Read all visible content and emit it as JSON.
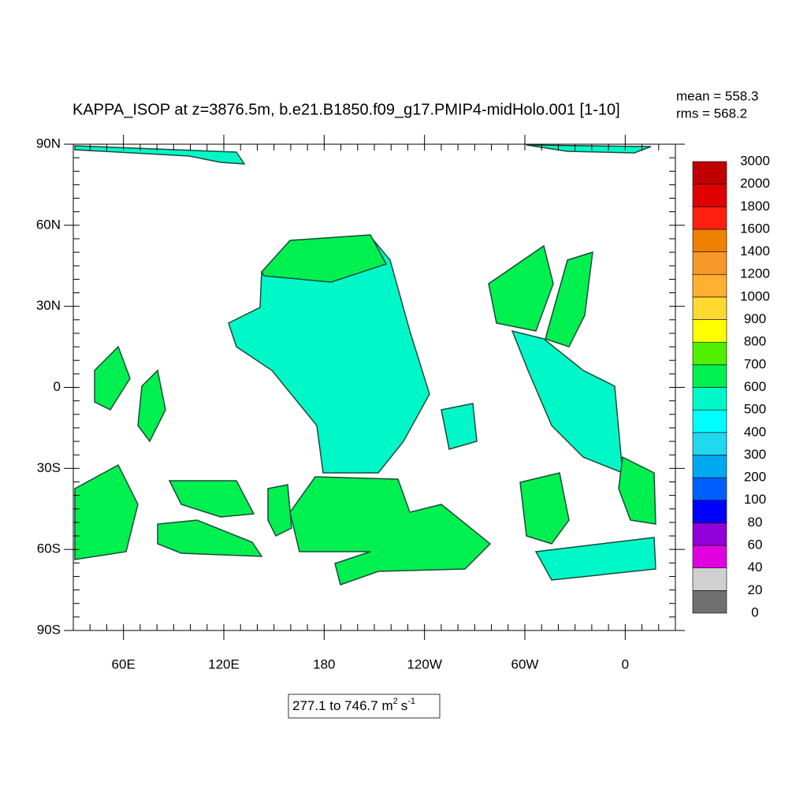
{
  "chart_data": {
    "type": "contour-map",
    "title": "KAPPA_ISOP at z=3876.5m, b.e21.B1850.f09_g17.PMIP4-midHolo.001 [1-10]",
    "mean_text": "mean = 558.3",
    "rms_text": "rms = 568.2",
    "range_text": "277.1 to 746.7",
    "units": {
      "base1": "m",
      "exp1": "2",
      "base2": "s",
      "exp2": "-1"
    },
    "xlim": [
      30,
      390
    ],
    "ylim": [
      -90,
      90
    ],
    "xticks": [
      {
        "value": 60,
        "label": "60E"
      },
      {
        "value": 120,
        "label": "120E"
      },
      180,
      {
        "value": 240,
        "label": "120W"
      },
      {
        "value": 300,
        "label": "60W"
      },
      {
        "value": 360,
        "label": "0"
      }
    ],
    "yticks": [
      {
        "value": 90,
        "label": "90N"
      },
      {
        "value": 60,
        "label": "60N"
      },
      {
        "value": 30,
        "label": "30N"
      },
      0,
      {
        "value": -30,
        "label": "30S"
      },
      {
        "value": -60,
        "label": "60S"
      },
      {
        "value": -90,
        "label": "90S"
      }
    ],
    "x_minor_step": 10,
    "y_minor_step": 5,
    "colorbar": {
      "levels": [
        0,
        20,
        40,
        60,
        80,
        100,
        200,
        300,
        400,
        500,
        600,
        700,
        800,
        900,
        1000,
        1200,
        1400,
        1600,
        1800,
        2000,
        3000
      ],
      "colors": [
        "#707070",
        "#d0d0d0",
        "#e000e0",
        "#9000d8",
        "#0000ff",
        "#0060ff",
        "#00a8f0",
        "#20d8f0",
        "#00ffff",
        "#00f8c8",
        "#00f050",
        "#50f000",
        "#ffff00",
        "#ffd830",
        "#ffb030",
        "#f89828",
        "#f08000",
        "#ff2010",
        "#e00000",
        "#c00000"
      ]
    }
  }
}
